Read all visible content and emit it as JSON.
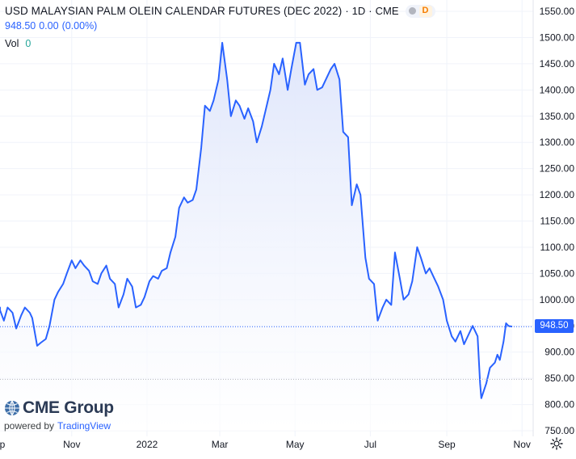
{
  "header": {
    "symbol_title": "USD MALAYSIAN PALM OLEIN CALENDAR FUTURES (DEC 2022)",
    "interval": "1D",
    "exchange": "CME",
    "separator": "·",
    "delayed_badge": "D",
    "last_price": "948.50",
    "change": "0.00",
    "change_pct": "(0.00%)",
    "volume_label": "Vol",
    "volume_value": "0"
  },
  "price_tag": "948.50",
  "branding": {
    "logo_text": "CME Group",
    "powered_by": "powered by",
    "tradingview": "TradingView"
  },
  "colors": {
    "line": "#2962ff",
    "area_top": "#dfe6fb",
    "area_bottom": "#ffffff",
    "grid": "#f0f3fa",
    "axis_text": "#131722"
  },
  "icons": {
    "settings": "gear-icon",
    "logo": "cme-globe-icon"
  },
  "chart_data": {
    "type": "area",
    "title": "USD MALAYSIAN PALM OLEIN CALENDAR FUTURES (DEC 2022)",
    "xlabel": "",
    "ylabel": "",
    "ylim": [
      750,
      1550
    ],
    "x_range": [
      "2021-08-27",
      "2022-10-24"
    ],
    "grid": true,
    "y_ticks": [
      "1550.00",
      "1500.00",
      "1450.00",
      "1400.00",
      "1350.00",
      "1300.00",
      "1250.00",
      "1200.00",
      "1150.00",
      "1100.00",
      "1050.00",
      "1000.00",
      "950.00",
      "900.00",
      "850.00",
      "800.00",
      "750.00"
    ],
    "y_tick_values": [
      1550,
      1500,
      1450,
      1400,
      1350,
      1300,
      1250,
      1200,
      1150,
      1100,
      1050,
      1000,
      950,
      900,
      850,
      800,
      750
    ],
    "x_ticks": [
      {
        "label": "Sep",
        "date": "2021-09-01"
      },
      {
        "label": "Nov",
        "date": "2021-11-01"
      },
      {
        "label": "2022",
        "date": "2022-01-01"
      },
      {
        "label": "Mar",
        "date": "2022-03-01"
      },
      {
        "label": "May",
        "date": "2022-05-01"
      },
      {
        "label": "Jul",
        "date": "2022-07-01"
      },
      {
        "label": "Sep",
        "date": "2022-09-01"
      },
      {
        "label": "Nov",
        "date": "2022-11-01"
      }
    ],
    "current_value": 948.5,
    "series": [
      {
        "points": [
          [
            "2021-08-27",
            975
          ],
          [
            "2021-08-31",
            985
          ],
          [
            "2021-09-03",
            980
          ],
          [
            "2021-09-07",
            960
          ],
          [
            "2021-09-10",
            985
          ],
          [
            "2021-09-14",
            975
          ],
          [
            "2021-09-17",
            945
          ],
          [
            "2021-09-21",
            970
          ],
          [
            "2021-09-24",
            985
          ],
          [
            "2021-09-28",
            975
          ],
          [
            "2021-09-30",
            965
          ],
          [
            "2021-10-04",
            912
          ],
          [
            "2021-10-07",
            918
          ],
          [
            "2021-10-11",
            925
          ],
          [
            "2021-10-14",
            950
          ],
          [
            "2021-10-18",
            1000
          ],
          [
            "2021-10-21",
            1015
          ],
          [
            "2021-10-25",
            1030
          ],
          [
            "2021-10-28",
            1050
          ],
          [
            "2021-11-01",
            1075
          ],
          [
            "2021-11-04",
            1060
          ],
          [
            "2021-11-08",
            1075
          ],
          [
            "2021-11-11",
            1065
          ],
          [
            "2021-11-15",
            1055
          ],
          [
            "2021-11-18",
            1035
          ],
          [
            "2021-11-22",
            1030
          ],
          [
            "2021-11-25",
            1050
          ],
          [
            "2021-11-29",
            1065
          ],
          [
            "2021-12-02",
            1040
          ],
          [
            "2021-12-06",
            1030
          ],
          [
            "2021-12-09",
            985
          ],
          [
            "2021-12-13",
            1010
          ],
          [
            "2021-12-16",
            1040
          ],
          [
            "2021-12-20",
            1025
          ],
          [
            "2021-12-23",
            985
          ],
          [
            "2021-12-27",
            990
          ],
          [
            "2021-12-30",
            1005
          ],
          [
            "2022-01-03",
            1035
          ],
          [
            "2022-01-06",
            1045
          ],
          [
            "2022-01-10",
            1040
          ],
          [
            "2022-01-13",
            1055
          ],
          [
            "2022-01-17",
            1060
          ],
          [
            "2022-01-20",
            1090
          ],
          [
            "2022-01-24",
            1120
          ],
          [
            "2022-01-27",
            1175
          ],
          [
            "2022-01-31",
            1195
          ],
          [
            "2022-02-03",
            1185
          ],
          [
            "2022-02-07",
            1190
          ],
          [
            "2022-02-10",
            1210
          ],
          [
            "2022-02-14",
            1290
          ],
          [
            "2022-02-17",
            1370
          ],
          [
            "2022-02-21",
            1360
          ],
          [
            "2022-02-24",
            1380
          ],
          [
            "2022-02-28",
            1420
          ],
          [
            "2022-03-03",
            1490
          ],
          [
            "2022-03-07",
            1420
          ],
          [
            "2022-03-10",
            1350
          ],
          [
            "2022-03-14",
            1380
          ],
          [
            "2022-03-17",
            1370
          ],
          [
            "2022-03-21",
            1345
          ],
          [
            "2022-03-24",
            1365
          ],
          [
            "2022-03-28",
            1340
          ],
          [
            "2022-03-31",
            1300
          ],
          [
            "2022-04-04",
            1330
          ],
          [
            "2022-04-07",
            1360
          ],
          [
            "2022-04-11",
            1400
          ],
          [
            "2022-04-14",
            1450
          ],
          [
            "2022-04-18",
            1430
          ],
          [
            "2022-04-21",
            1460
          ],
          [
            "2022-04-25",
            1400
          ],
          [
            "2022-04-28",
            1440
          ],
          [
            "2022-05-02",
            1490
          ],
          [
            "2022-05-05",
            1490
          ],
          [
            "2022-05-09",
            1410
          ],
          [
            "2022-05-12",
            1430
          ],
          [
            "2022-05-16",
            1440
          ],
          [
            "2022-05-19",
            1400
          ],
          [
            "2022-05-23",
            1405
          ],
          [
            "2022-05-26",
            1420
          ],
          [
            "2022-05-30",
            1440
          ],
          [
            "2022-06-02",
            1450
          ],
          [
            "2022-06-06",
            1420
          ],
          [
            "2022-06-09",
            1320
          ],
          [
            "2022-06-13",
            1310
          ],
          [
            "2022-06-16",
            1180
          ],
          [
            "2022-06-20",
            1220
          ],
          [
            "2022-06-23",
            1200
          ],
          [
            "2022-06-27",
            1080
          ],
          [
            "2022-06-30",
            1040
          ],
          [
            "2022-07-04",
            1030
          ],
          [
            "2022-07-07",
            960
          ],
          [
            "2022-07-11",
            985
          ],
          [
            "2022-07-14",
            1000
          ],
          [
            "2022-07-18",
            990
          ],
          [
            "2022-07-21",
            1090
          ],
          [
            "2022-07-25",
            1040
          ],
          [
            "2022-07-28",
            1000
          ],
          [
            "2022-08-01",
            1010
          ],
          [
            "2022-08-04",
            1035
          ],
          [
            "2022-08-08",
            1100
          ],
          [
            "2022-08-11",
            1080
          ],
          [
            "2022-08-15",
            1050
          ],
          [
            "2022-08-18",
            1060
          ],
          [
            "2022-08-22",
            1040
          ],
          [
            "2022-08-25",
            1025
          ],
          [
            "2022-08-29",
            1000
          ],
          [
            "2022-09-01",
            960
          ],
          [
            "2022-09-05",
            930
          ],
          [
            "2022-09-08",
            920
          ],
          [
            "2022-09-12",
            940
          ],
          [
            "2022-09-15",
            915
          ],
          [
            "2022-09-19",
            935
          ],
          [
            "2022-09-22",
            950
          ],
          [
            "2022-09-26",
            930
          ],
          [
            "2022-09-28",
            840
          ],
          [
            "2022-09-29",
            812
          ],
          [
            "2022-10-03",
            840
          ],
          [
            "2022-10-06",
            870
          ],
          [
            "2022-10-10",
            880
          ],
          [
            "2022-10-12",
            895
          ],
          [
            "2022-10-14",
            885
          ],
          [
            "2022-10-17",
            920
          ],
          [
            "2022-10-19",
            955
          ],
          [
            "2022-10-21",
            950
          ],
          [
            "2022-10-24",
            948.5
          ]
        ]
      }
    ]
  }
}
